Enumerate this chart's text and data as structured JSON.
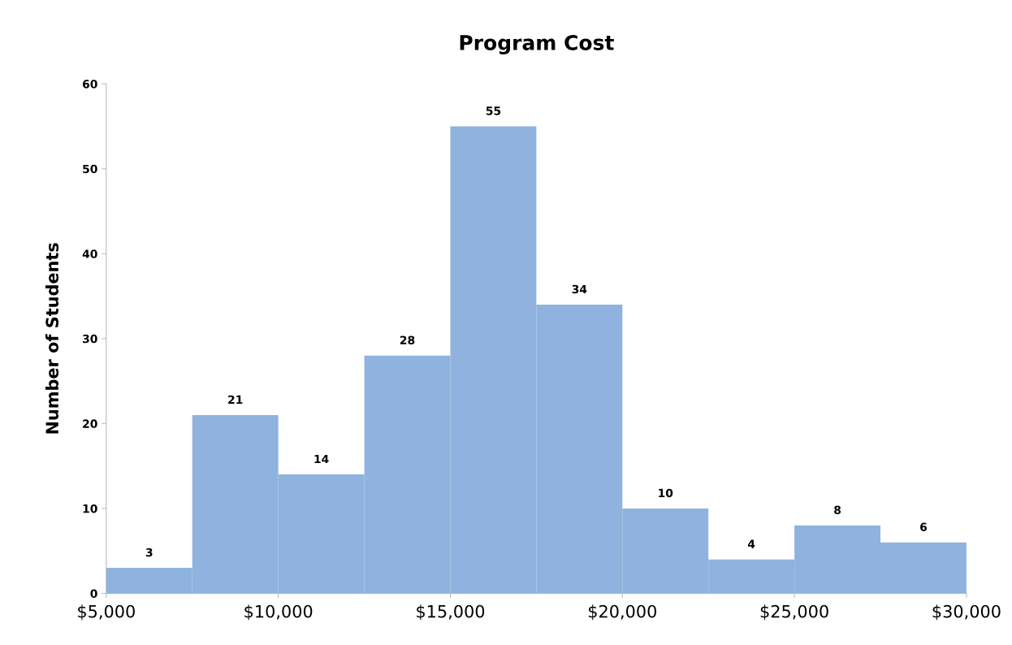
{
  "chart_data": {
    "type": "histogram",
    "title": "Program Cost",
    "ylabel": "Number of Students",
    "bins": [
      5000,
      7500,
      10000,
      12500,
      15000,
      17500,
      20000,
      22500,
      25000,
      27500,
      30000
    ],
    "values": [
      3,
      21,
      14,
      28,
      55,
      34,
      10,
      4,
      8,
      6
    ],
    "color": "#8fb3de",
    "data_labels": true,
    "xlim": [
      5000,
      30000
    ],
    "xticks": [
      {
        "value": 5000,
        "label": "$5,000"
      },
      {
        "value": 10000,
        "label": "$10,000"
      },
      {
        "value": 15000,
        "label": "$15,000"
      },
      {
        "value": 20000,
        "label": "$20,000"
      },
      {
        "value": 25000,
        "label": "$25,000"
      },
      {
        "value": 30000,
        "label": "$30,000"
      }
    ],
    "ylim": [
      0,
      60
    ],
    "yticks": [
      0,
      10,
      20,
      30,
      40,
      50,
      60
    ],
    "grid": false,
    "legend": false
  }
}
